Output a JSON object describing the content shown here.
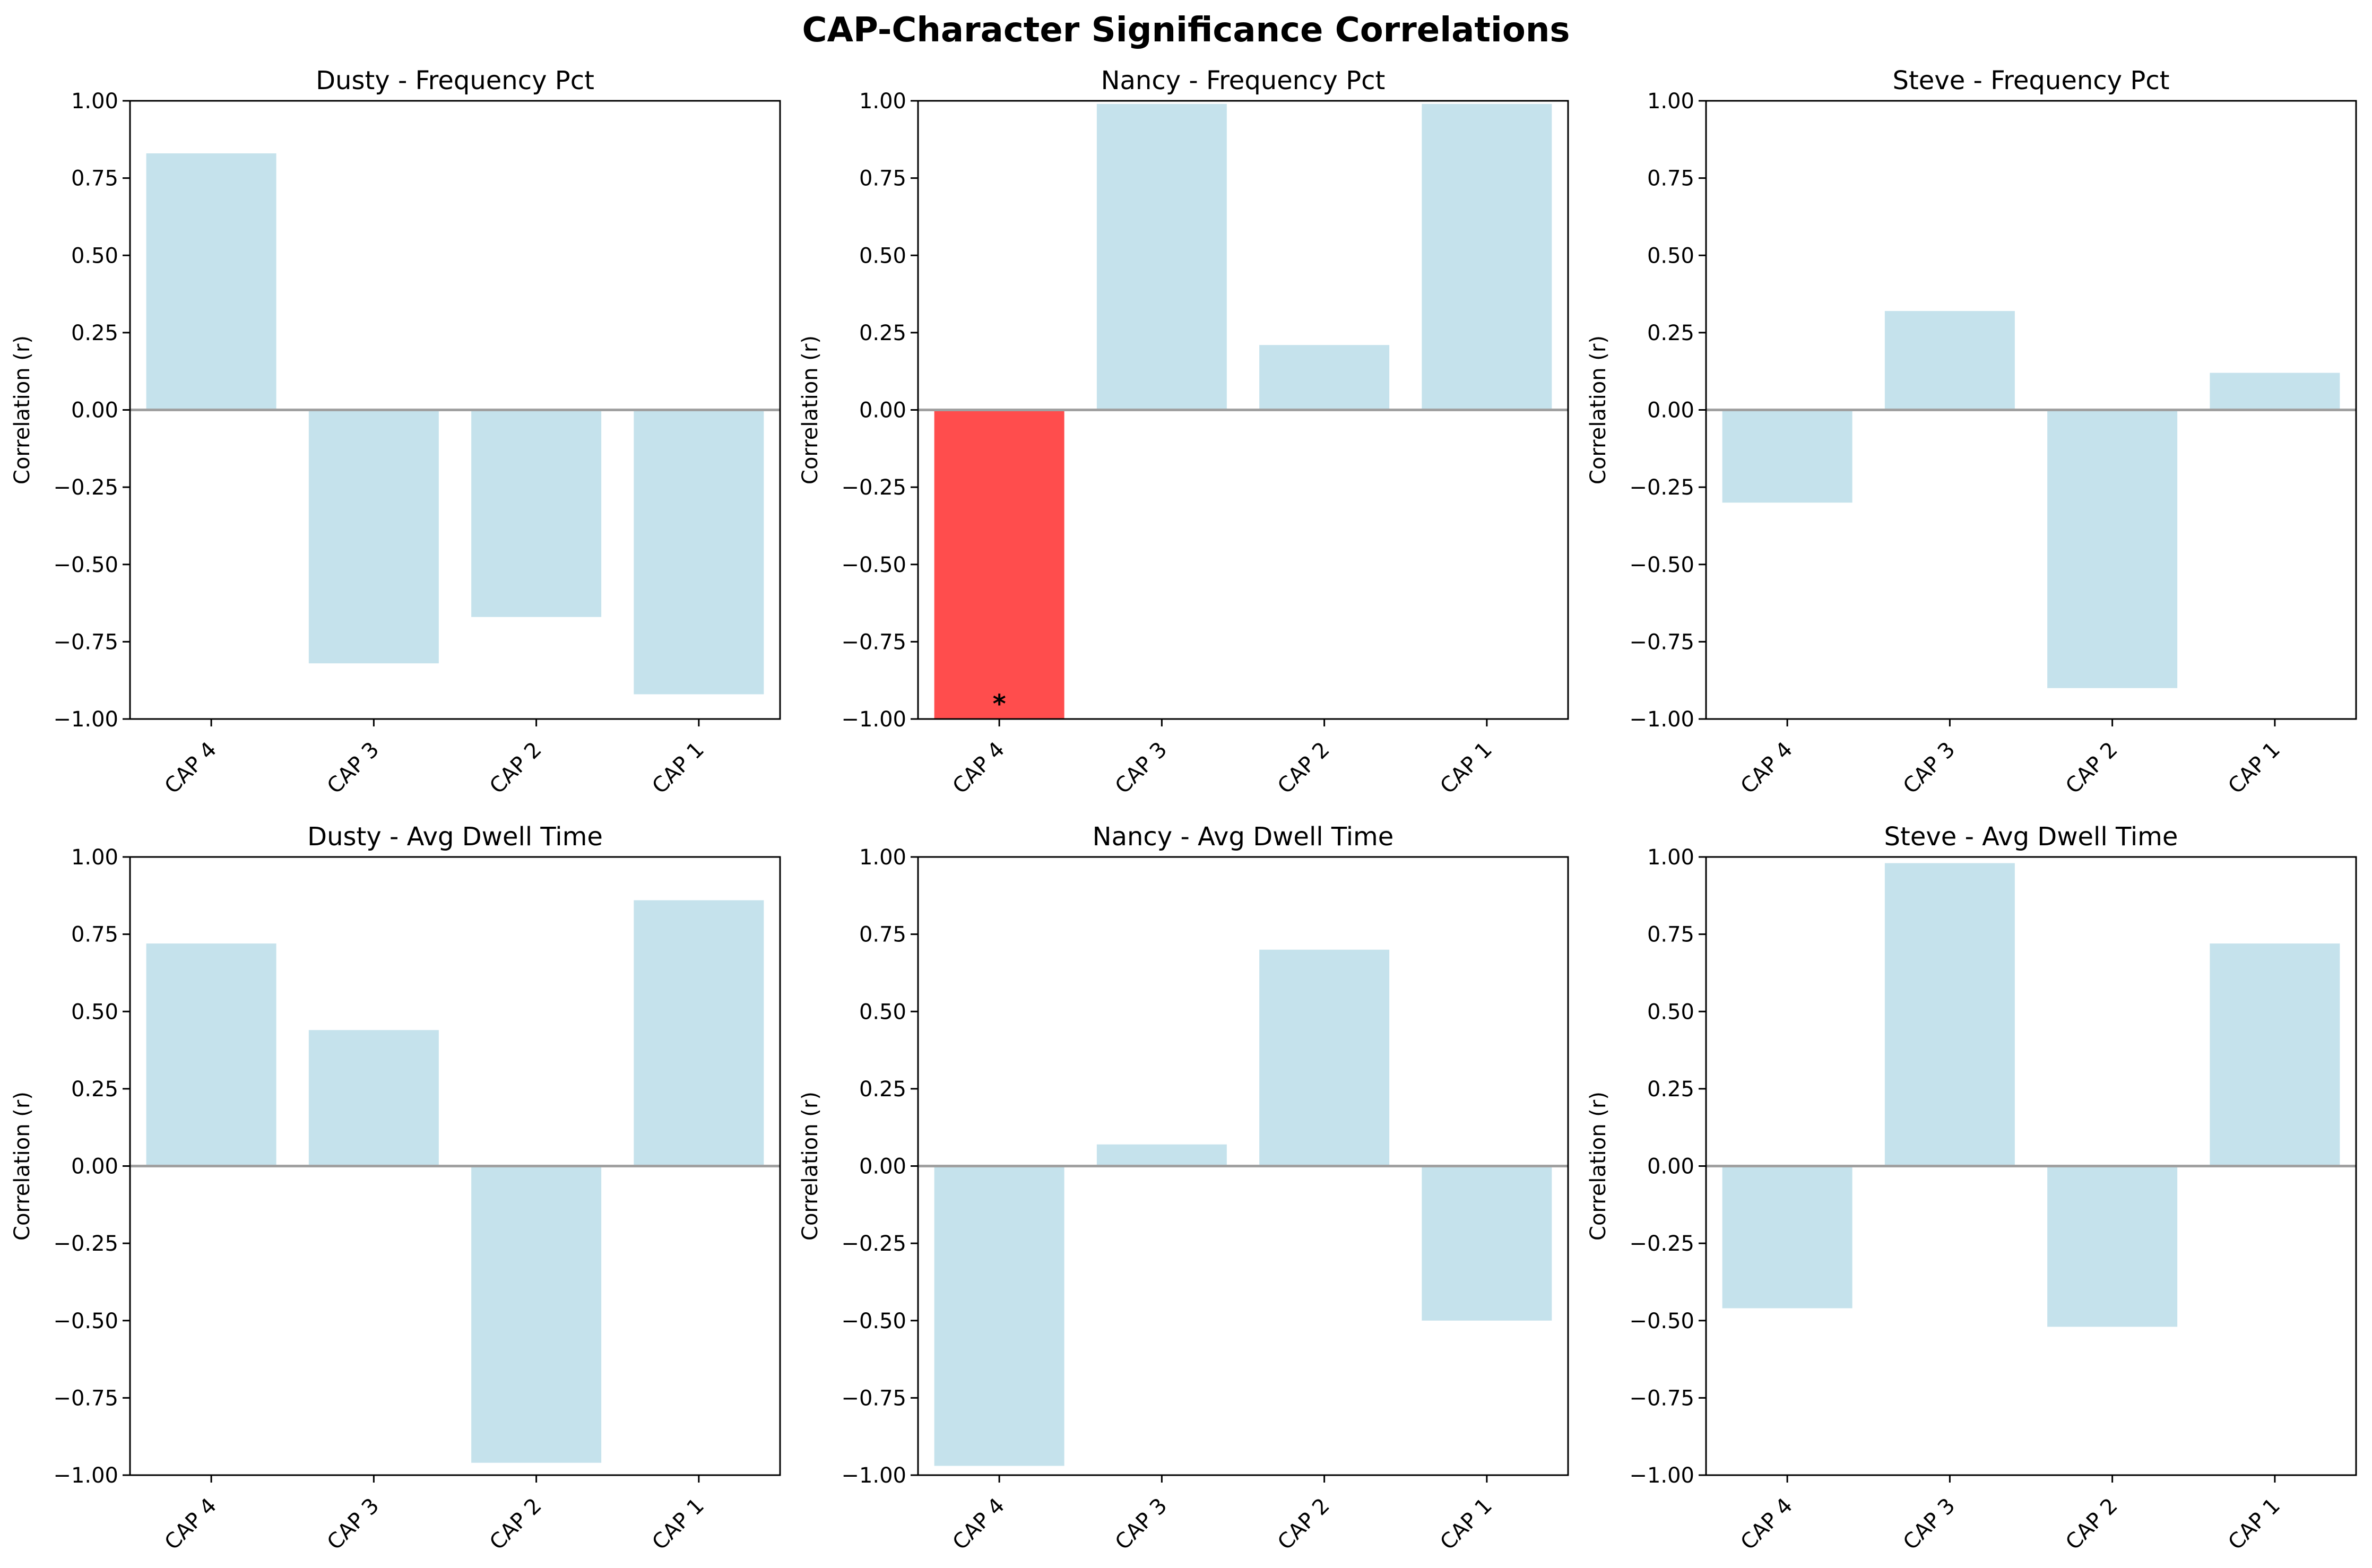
{
  "chart_data": {
    "title": "CAP-Character Significance Correlations",
    "colors": {
      "bar": "#c5e2ec",
      "significant_bar": "#ff4d4d",
      "zero_line": "#a0a0a0",
      "frame": "#000000"
    },
    "panels": [
      {
        "type": "bar",
        "title": "Dusty - Frequency Pct",
        "ylabel": "Correlation (r)",
        "ylim": [
          -1.0,
          1.0
        ],
        "yticks": [
          "1.00",
          "0.75",
          "0.50",
          "0.25",
          "0.00",
          "−0.25",
          "−0.50",
          "−0.75",
          "−1.00"
        ],
        "categories": [
          "CAP 4",
          "CAP 3",
          "CAP 2",
          "CAP 1"
        ],
        "values": [
          0.83,
          -0.82,
          -0.67,
          -0.92
        ],
        "significant": [
          false,
          false,
          false,
          false
        ]
      },
      {
        "type": "bar",
        "title": "Nancy - Frequency Pct",
        "ylabel": "Correlation (r)",
        "ylim": [
          -1.0,
          1.0
        ],
        "yticks": [
          "1.00",
          "0.75",
          "0.50",
          "0.25",
          "0.00",
          "−0.25",
          "−0.50",
          "−0.75",
          "−1.00"
        ],
        "categories": [
          "CAP 4",
          "CAP 3",
          "CAP 2",
          "CAP 1"
        ],
        "values": [
          -1.0,
          0.99,
          0.21,
          0.99
        ],
        "significant": [
          true,
          false,
          false,
          false
        ],
        "significance_marker": "*"
      },
      {
        "type": "bar",
        "title": "Steve - Frequency Pct",
        "ylabel": "Correlation (r)",
        "ylim": [
          -1.0,
          1.0
        ],
        "yticks": [
          "1.00",
          "0.75",
          "0.50",
          "0.25",
          "0.00",
          "−0.25",
          "−0.50",
          "−0.75",
          "−1.00"
        ],
        "categories": [
          "CAP 4",
          "CAP 3",
          "CAP 2",
          "CAP 1"
        ],
        "values": [
          -0.3,
          0.32,
          -0.9,
          0.12
        ],
        "significant": [
          false,
          false,
          false,
          false
        ]
      },
      {
        "type": "bar",
        "title": "Dusty - Avg Dwell Time",
        "ylabel": "Correlation (r)",
        "ylim": [
          -1.0,
          1.0
        ],
        "yticks": [
          "1.00",
          "0.75",
          "0.50",
          "0.25",
          "0.00",
          "−0.25",
          "−0.50",
          "−0.75",
          "−1.00"
        ],
        "categories": [
          "CAP 4",
          "CAP 3",
          "CAP 2",
          "CAP 1"
        ],
        "values": [
          0.72,
          0.44,
          -0.96,
          0.86
        ],
        "significant": [
          false,
          false,
          false,
          false
        ]
      },
      {
        "type": "bar",
        "title": "Nancy - Avg Dwell Time",
        "ylabel": "Correlation (r)",
        "ylim": [
          -1.0,
          1.0
        ],
        "yticks": [
          "1.00",
          "0.75",
          "0.50",
          "0.25",
          "0.00",
          "−0.25",
          "−0.50",
          "−0.75",
          "−1.00"
        ],
        "categories": [
          "CAP 4",
          "CAP 3",
          "CAP 2",
          "CAP 1"
        ],
        "values": [
          -0.97,
          0.07,
          0.7,
          -0.5
        ],
        "significant": [
          false,
          false,
          false,
          false
        ]
      },
      {
        "type": "bar",
        "title": "Steve - Avg Dwell Time",
        "ylabel": "Correlation (r)",
        "ylim": [
          -1.0,
          1.0
        ],
        "yticks": [
          "1.00",
          "0.75",
          "0.50",
          "0.25",
          "0.00",
          "−0.25",
          "−0.50",
          "−0.75",
          "−1.00"
        ],
        "categories": [
          "CAP 4",
          "CAP 3",
          "CAP 2",
          "CAP 1"
        ],
        "values": [
          -0.46,
          0.98,
          -0.52,
          0.72
        ],
        "significant": [
          false,
          false,
          false,
          false
        ]
      }
    ]
  }
}
